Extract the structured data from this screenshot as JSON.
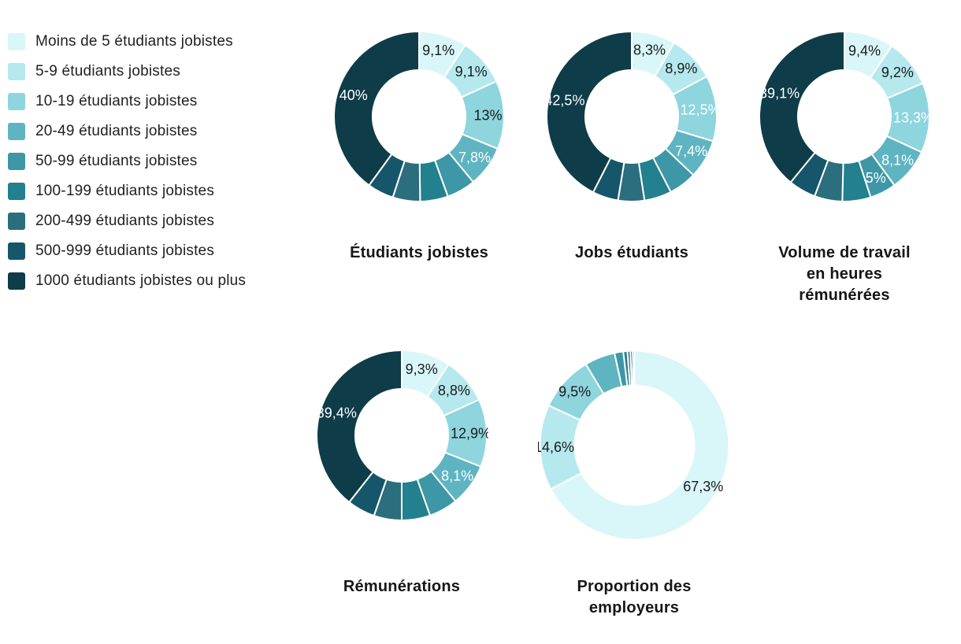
{
  "page": {
    "background": "#ffffff"
  },
  "legend": {
    "items": [
      {
        "label": "Moins de 5 étudiants jobistes",
        "color": "#d9f6f9"
      },
      {
        "label": "5-9 étudiants jobistes",
        "color": "#b5e9ee"
      },
      {
        "label": "10-19 étudiants jobistes",
        "color": "#8ed5de"
      },
      {
        "label": "20-49 étudiants jobistes",
        "color": "#5fb4c2"
      },
      {
        "label": "50-99 étudiants jobistes",
        "color": "#3e97a6"
      },
      {
        "label": "100-199 étudiants jobistes",
        "color": "#22808f"
      },
      {
        "label": "200-499 étudiants jobistes",
        "color": "#2b6e7d"
      },
      {
        "label": "500-999 étudiants jobistes",
        "color": "#16566a"
      },
      {
        "label": "1000 étudiants jobistes ou plus",
        "color": "#0e3c48"
      }
    ]
  },
  "chart_data": [
    {
      "type": "pie",
      "donut": true,
      "title": "Étudiants jobistes",
      "categories": [
        "Moins de 5 étudiants jobistes",
        "5-9 étudiants jobistes",
        "10-19 étudiants jobistes",
        "20-49 étudiants jobistes",
        "50-99 étudiants jobistes",
        "100-199 étudiants jobistes",
        "200-499 étudiants jobistes",
        "500-999 étudiants jobistes",
        "1000 étudiants jobistes ou plus"
      ],
      "values": [
        9.1,
        9.1,
        13.0,
        7.8,
        5.5,
        5.3,
        5.2,
        5.0,
        40.0
      ],
      "labels": [
        "9,1%",
        "9,1%",
        "13%",
        "7,8%",
        "",
        "",
        "",
        "",
        "40%"
      ],
      "label_colors": [
        "#1a1a1a",
        "#1a1a1a",
        "#1a1a1a",
        "#ffffff",
        "",
        "",
        "",
        "",
        "#ffffff"
      ],
      "colors": [
        "#d9f6f9",
        "#b5e9ee",
        "#8ed5de",
        "#5fb4c2",
        "#3e97a6",
        "#22808f",
        "#2b6e7d",
        "#16566a",
        "#0e3c48"
      ]
    },
    {
      "type": "pie",
      "donut": true,
      "title": "Jobs étudiants",
      "categories": [
        "Moins de 5 étudiants jobistes",
        "5-9 étudiants jobistes",
        "10-19 étudiants jobistes",
        "20-49 étudiants jobistes",
        "50-99 étudiants jobistes",
        "100-199 étudiants jobistes",
        "200-499 étudiants jobistes",
        "500-999 étudiants jobistes",
        "1000 étudiants jobistes ou plus"
      ],
      "values": [
        8.3,
        8.9,
        12.5,
        7.4,
        5.3,
        5.2,
        5.0,
        4.9,
        42.5
      ],
      "labels": [
        "8,3%",
        "8,9%",
        "12,5%",
        "7,4%",
        "",
        "",
        "",
        "",
        "42,5%"
      ],
      "label_colors": [
        "#1a1a1a",
        "#1a1a1a",
        "#ffffff",
        "#ffffff",
        "",
        "",
        "",
        "",
        "#ffffff"
      ],
      "colors": [
        "#d9f6f9",
        "#b5e9ee",
        "#8ed5de",
        "#5fb4c2",
        "#3e97a6",
        "#22808f",
        "#2b6e7d",
        "#16566a",
        "#0e3c48"
      ]
    },
    {
      "type": "pie",
      "donut": true,
      "title": "Volume de travail\nen heures\nrémunérées",
      "categories": [
        "Moins de 5 étudiants jobistes",
        "5-9 étudiants jobistes",
        "10-19 étudiants jobistes",
        "20-49 étudiants jobistes",
        "50-99 étudiants jobistes",
        "100-199 étudiants jobistes",
        "200-499 étudiants jobistes",
        "500-999 étudiants jobistes",
        "1000 étudiants jobistes ou plus"
      ],
      "values": [
        9.4,
        9.2,
        13.3,
        8.1,
        5.0,
        5.4,
        5.3,
        5.2,
        39.1
      ],
      "labels": [
        "9,4%",
        "9,2%",
        "13,3%",
        "8,1%",
        "5%",
        "",
        "",
        "",
        "39,1%"
      ],
      "label_colors": [
        "#1a1a1a",
        "#1a1a1a",
        "#ffffff",
        "#ffffff",
        "#ffffff",
        "",
        "",
        "",
        "#ffffff"
      ],
      "colors": [
        "#d9f6f9",
        "#b5e9ee",
        "#8ed5de",
        "#5fb4c2",
        "#3e97a6",
        "#22808f",
        "#2b6e7d",
        "#16566a",
        "#0e3c48"
      ]
    },
    {
      "type": "pie",
      "donut": true,
      "title": "Rémunérations",
      "categories": [
        "Moins de 5 étudiants jobistes",
        "5-9 étudiants jobistes",
        "10-19 étudiants jobistes",
        "20-49 étudiants jobistes",
        "50-99 étudiants jobistes",
        "100-199 étudiants jobistes",
        "200-499 étudiants jobistes",
        "500-999 étudiants jobistes",
        "1000 étudiants jobistes ou plus"
      ],
      "values": [
        9.3,
        8.8,
        12.9,
        8.1,
        5.5,
        5.4,
        5.3,
        5.3,
        39.4
      ],
      "labels": [
        "9,3%",
        "8,8%",
        "12,9%",
        "8,1%",
        "",
        "",
        "",
        "",
        "39,4%"
      ],
      "label_colors": [
        "#1a1a1a",
        "#1a1a1a",
        "#1a1a1a",
        "#ffffff",
        "",
        "",
        "",
        "",
        "#ffffff"
      ],
      "colors": [
        "#d9f6f9",
        "#b5e9ee",
        "#8ed5de",
        "#5fb4c2",
        "#3e97a6",
        "#22808f",
        "#2b6e7d",
        "#16566a",
        "#0e3c48"
      ]
    },
    {
      "type": "pie",
      "donut": true,
      "title": "Proportion des\nemployeurs",
      "categories": [
        "Moins de 5 étudiants jobistes",
        "5-9 étudiants jobistes",
        "10-19 étudiants jobistes",
        "20-49 étudiants jobistes",
        "50-99 étudiants jobistes",
        "100-199 étudiants jobistes",
        "200-499 étudiants jobistes",
        "500-999 étudiants jobistes",
        "1000 étudiants jobistes ou plus"
      ],
      "values": [
        67.3,
        14.6,
        9.5,
        5.2,
        1.5,
        0.7,
        0.5,
        0.4,
        0.3
      ],
      "labels": [
        "67,3%",
        "14,6%",
        "9,5%",
        "",
        "",
        "",
        "",
        "",
        ""
      ],
      "label_colors": [
        "#1a1a1a",
        "#1a1a1a",
        "#1a1a1a",
        "",
        "",
        "",
        "",
        "",
        ""
      ],
      "colors": [
        "#d9f6f9",
        "#b5e9ee",
        "#8ed5de",
        "#5fb4c2",
        "#3e97a6",
        "#22808f",
        "#2b6e7d",
        "#16566a",
        "#0e3c48"
      ]
    }
  ]
}
